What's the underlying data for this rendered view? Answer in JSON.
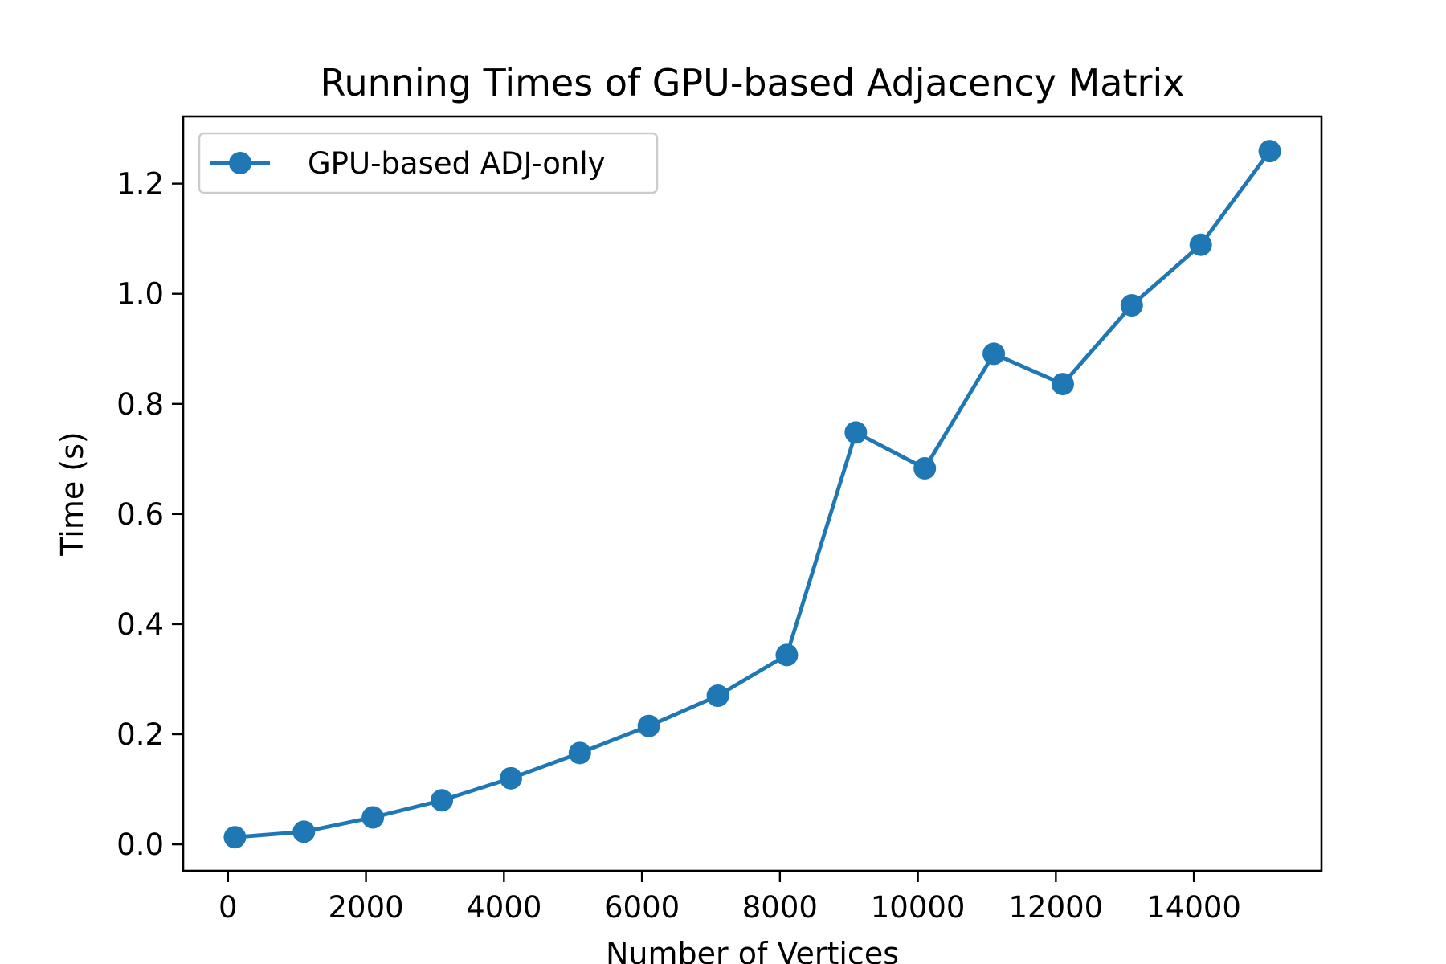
{
  "chart_data": {
    "type": "line",
    "title": "Running Times of GPU-based Adjacency Matrix",
    "xlabel": "Number of Vertices",
    "ylabel": "Time (s)",
    "x": [
      100,
      1100,
      2100,
      3100,
      4100,
      5100,
      6100,
      7100,
      8100,
      9100,
      10100,
      11100,
      12100,
      13100,
      14100,
      15100
    ],
    "series": [
      {
        "name": "GPU-based ADJ-only",
        "color": "#1f77b4",
        "marker": "circle",
        "values": [
          0.013,
          0.023,
          0.049,
          0.08,
          0.12,
          0.166,
          0.215,
          0.27,
          0.344,
          0.748,
          0.683,
          0.891,
          0.836,
          0.979,
          1.089,
          1.259
        ]
      }
    ],
    "xlim": [
      -650,
      15850
    ],
    "ylim": [
      -0.048,
      1.322
    ],
    "xticks": [
      0,
      2000,
      4000,
      6000,
      8000,
      10000,
      12000,
      14000
    ],
    "yticks": [
      0.0,
      0.2,
      0.4,
      0.6,
      0.8,
      1.0,
      1.2
    ],
    "ytick_labels": [
      "0.0",
      "0.2",
      "0.4",
      "0.6",
      "0.8",
      "1.0",
      "1.2"
    ],
    "grid": false,
    "legend_position": "upper-left"
  }
}
